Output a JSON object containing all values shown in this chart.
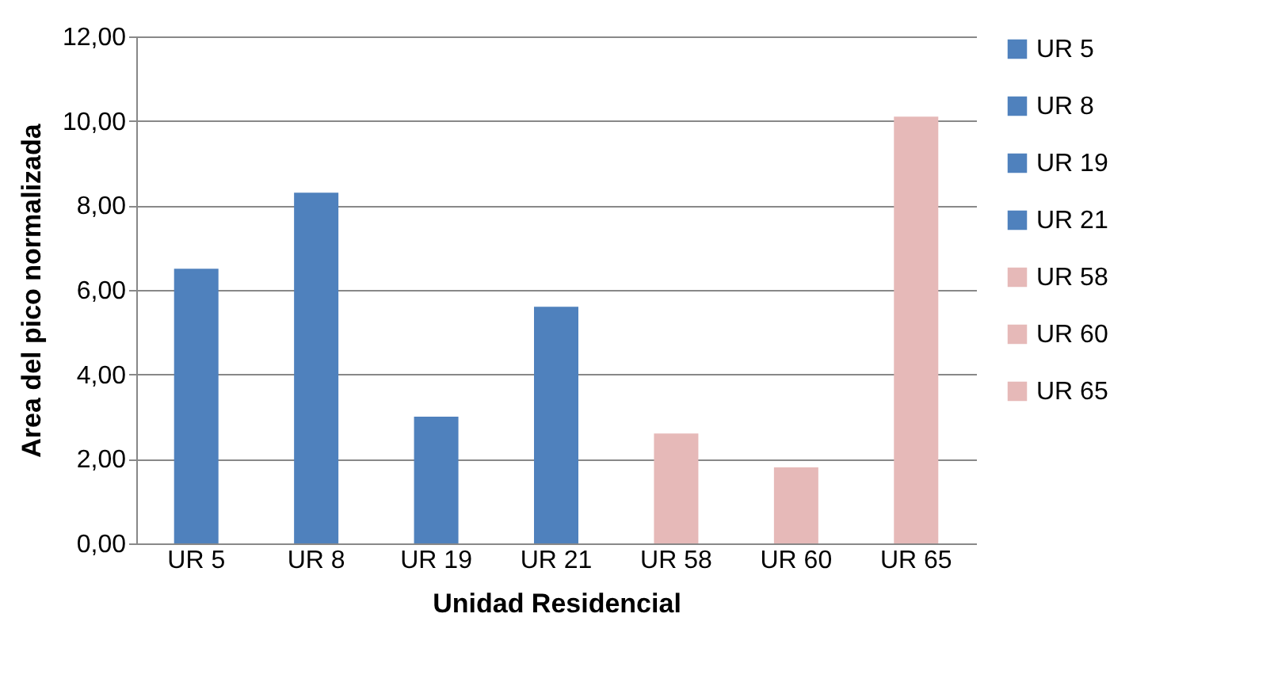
{
  "chart_data": {
    "type": "bar",
    "xlabel": "Unidad Residencial",
    "ylabel": "Area del pico normalizada",
    "categories": [
      "UR 5",
      "UR 8",
      "UR 19",
      "UR 21",
      "UR 58",
      "UR 60",
      "UR 65"
    ],
    "series": [
      {
        "name": "UR 5",
        "color": "#4f81bd",
        "values": [
          6.5,
          null,
          null,
          null,
          null,
          null,
          null
        ]
      },
      {
        "name": "UR 8",
        "color": "#4f81bd",
        "values": [
          null,
          8.3,
          null,
          null,
          null,
          null,
          null
        ]
      },
      {
        "name": "UR 19",
        "color": "#4f81bd",
        "values": [
          null,
          null,
          3.0,
          null,
          null,
          null,
          null
        ]
      },
      {
        "name": "UR 21",
        "color": "#4f81bd",
        "values": [
          null,
          null,
          null,
          5.6,
          null,
          null,
          null
        ]
      },
      {
        "name": "UR 58",
        "color": "#e6b9b8",
        "values": [
          null,
          null,
          null,
          null,
          2.6,
          null,
          null
        ]
      },
      {
        "name": "UR 60",
        "color": "#e6b9b8",
        "values": [
          null,
          null,
          null,
          null,
          null,
          1.8,
          null
        ]
      },
      {
        "name": "UR 65",
        "color": "#e6b9b8",
        "values": [
          null,
          null,
          null,
          null,
          null,
          null,
          10.1
        ]
      }
    ],
    "ylim": [
      0,
      12
    ],
    "yticks": [
      {
        "value": 0,
        "label": "0,00"
      },
      {
        "value": 2,
        "label": "2,00"
      },
      {
        "value": 4,
        "label": "4,00"
      },
      {
        "value": 6,
        "label": "6,00"
      },
      {
        "value": 8,
        "label": "8,00"
      },
      {
        "value": 10,
        "label": "10,00"
      },
      {
        "value": 12,
        "label": "12,00"
      }
    ],
    "grid": "y",
    "legend": "right"
  }
}
